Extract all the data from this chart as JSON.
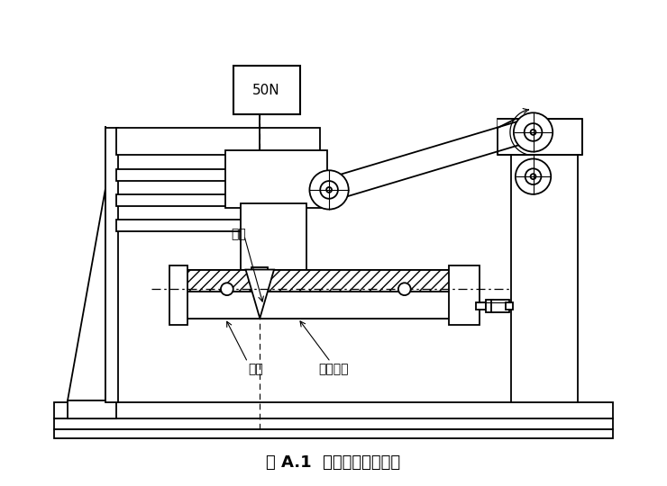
{
  "title": "图 A.1  软管耐磨损试验机",
  "label_50N": "50N",
  "label_mojv": "磨具",
  "label_xinxing": "芯型",
  "label_ruanguan": "软管试样",
  "bg_color": "#ffffff",
  "line_color": "#000000",
  "fig_width": 7.4,
  "fig_height": 5.4,
  "dpi": 100
}
